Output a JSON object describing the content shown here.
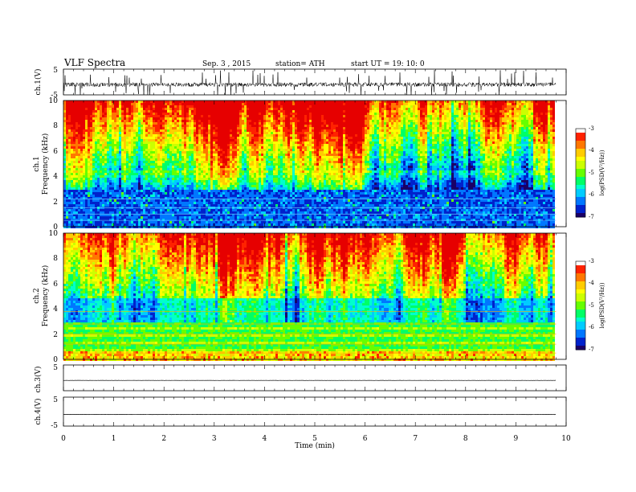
{
  "header": {
    "title": "VLF  Spectra",
    "date": "Sep. 3  , 2015",
    "station": "station= ATH",
    "start": "start  UT  =    19: 10: 0"
  },
  "chart_data": [
    {
      "type": "line",
      "ylabel": "ch.1(V)",
      "ylim": [
        -5,
        5
      ],
      "yticks": [
        "5",
        "-5"
      ],
      "signal": "dense noisy waveform centred near -1 V with frequent spikes toward +5 and -5"
    },
    {
      "type": "heatmap",
      "ylabel_channel": "ch.1",
      "ylabel": "Frequency  (kHz)",
      "ylim": [
        0,
        10
      ],
      "yticks": [
        "10",
        "8",
        "6",
        "4",
        "2",
        "0"
      ],
      "colorbar": {
        "label": "log(PSD(V²/Hz))",
        "range": [
          -7,
          -3
        ],
        "ticks": [
          "-3",
          "-4",
          "-5",
          "-6",
          "-7"
        ]
      }
    },
    {
      "type": "heatmap",
      "ylabel_channel": "ch.2",
      "ylabel": "Frequency  (kHz)",
      "ylim": [
        0,
        10
      ],
      "yticks": [
        "10",
        "8",
        "6",
        "4",
        "2",
        "0"
      ],
      "colorbar": {
        "label": "log(PSD(V²/Hz))",
        "range": [
          -7,
          -3
        ],
        "ticks": [
          "-3",
          "-4",
          "-5",
          "-6",
          "-7"
        ]
      }
    },
    {
      "type": "line",
      "ylabel": "ch.3(V)",
      "ylim": [
        -5,
        5
      ],
      "yticks": [
        "5"
      ],
      "signal": "nearly flat trace near -1 V"
    },
    {
      "type": "line",
      "ylabel": "ch.4(V)",
      "ylim": [
        -5,
        5
      ],
      "yticks": [
        "5",
        "-5"
      ],
      "signal": "flat trace near -1 V"
    }
  ],
  "xaxis": {
    "label": "Time  (min)",
    "range": [
      0,
      10
    ],
    "ticks": [
      "0",
      "1",
      "2",
      "3",
      "4",
      "5",
      "6",
      "7",
      "8",
      "9",
      "10"
    ],
    "data_end": 9.8
  },
  "colors": {
    "colormap": [
      "#1a0066",
      "#0022cc",
      "#0077ff",
      "#00ccff",
      "#00ffcc",
      "#00ff66",
      "#66ff00",
      "#ccff00",
      "#ffff00",
      "#ffcc00",
      "#ff7700",
      "#ff2200",
      "#e60000",
      "#ffffff"
    ]
  }
}
